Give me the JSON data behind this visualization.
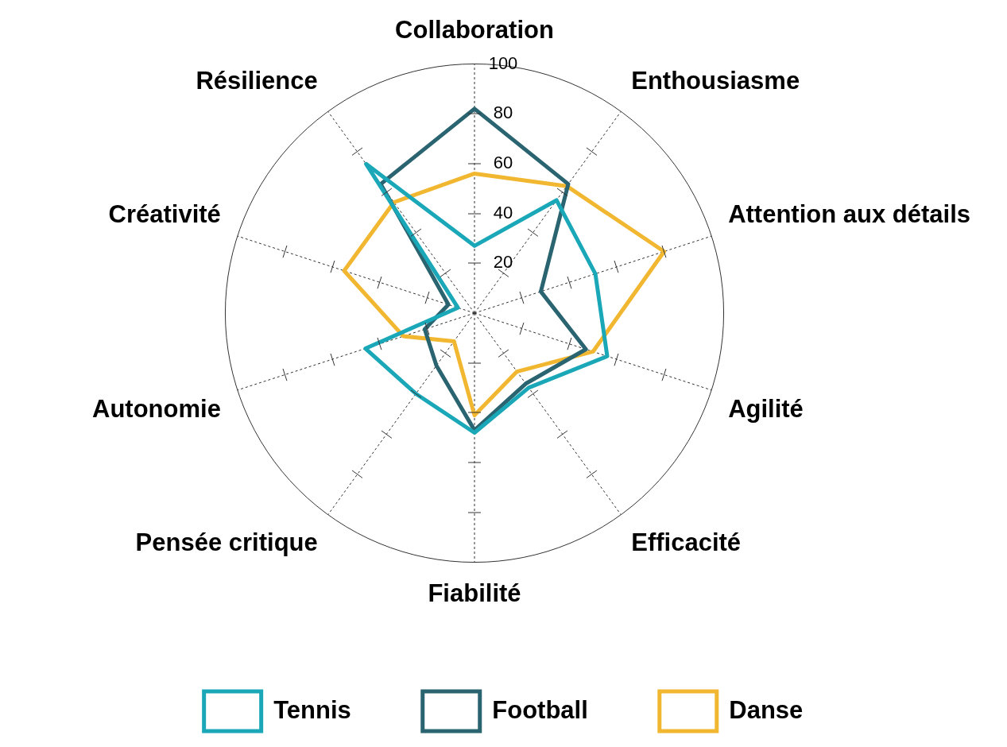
{
  "chart_data": {
    "type": "radar",
    "categories": [
      "Collaboration",
      "Enthousiasme",
      "Attention aux détails",
      "Agilité",
      "Efficacité",
      "Fiabilité",
      "Pensée critique",
      "Autonomie",
      "Créativité",
      "Résilience"
    ],
    "series": [
      {
        "name": "Tennis",
        "color": "#1aa7b8",
        "values": [
          27,
          56,
          51,
          56,
          37,
          48,
          40,
          46,
          7,
          74
        ]
      },
      {
        "name": "Football",
        "color": "#2a6470",
        "values": [
          82,
          64,
          28,
          47,
          35,
          47,
          26,
          21,
          11,
          64
        ]
      },
      {
        "name": "Danse",
        "color": "#f2b731",
        "values": [
          56,
          63,
          80,
          50,
          29,
          41,
          14,
          30,
          55,
          55
        ]
      }
    ],
    "ylim": [
      0,
      100
    ],
    "yticks": [
      20,
      40,
      60,
      80,
      100
    ],
    "grid": true,
    "legend": "bottom",
    "marker": "none",
    "line_style": "solid"
  }
}
